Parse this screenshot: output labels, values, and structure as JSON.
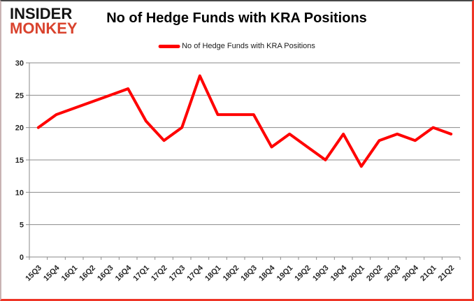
{
  "logo": {
    "line1": "INSIDER",
    "line2": "MONKEY"
  },
  "header": {
    "title": "No of Hedge Funds with KRA Positions"
  },
  "legend": {
    "label": "No of Hedge Funds with KRA Positions"
  },
  "colors": {
    "series_line": "#ff0000",
    "grid_line": "#8a8a8a",
    "axis_line": "#8a8a8a",
    "tick_label": "#262626",
    "title_text": "#000000",
    "logo_primary": "#141414",
    "logo_accent": "#d9432e",
    "frame_glow": "#ee3526"
  },
  "chart_data": {
    "type": "line",
    "title": "No of Hedge Funds with KRA Positions",
    "categories": [
      "15Q3",
      "15Q4",
      "16Q1",
      "16Q2",
      "16Q3",
      "16Q4",
      "17Q1",
      "17Q2",
      "17Q3",
      "17Q4",
      "18Q1",
      "18Q2",
      "18Q3",
      "18Q4",
      "19Q1",
      "19Q2",
      "19Q3",
      "19Q4",
      "20Q1",
      "20Q2",
      "20Q3",
      "20Q4",
      "21Q1",
      "21Q2"
    ],
    "series": [
      {
        "name": "No of Hedge Funds with KRA Positions",
        "color": "#ff0000",
        "values": [
          20,
          22,
          23,
          24,
          25,
          26,
          21,
          18,
          20,
          28,
          22,
          22,
          22,
          17,
          19,
          17,
          15,
          19,
          14,
          18,
          19,
          18,
          20,
          19
        ]
      }
    ],
    "xlabel": "",
    "ylabel": "",
    "ylim": [
      0,
      30
    ],
    "yticks": [
      0,
      5,
      10,
      15,
      20,
      25,
      30
    ],
    "grid": true,
    "legend_position": "top-center"
  }
}
